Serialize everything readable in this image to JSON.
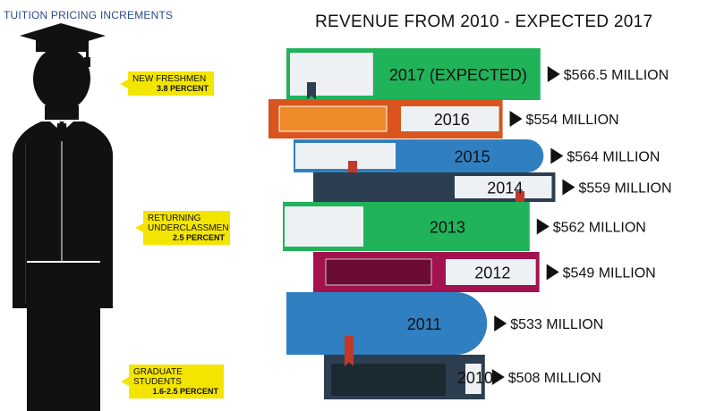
{
  "left_title": "TUITION PRICING INCREMENTS",
  "callouts": [
    {
      "label": "NEW FRESHMEN",
      "value": "3.8 PERCENT"
    },
    {
      "label": "RETURNING UNDERCLASSMEN",
      "value": "2.5 PERCENT"
    },
    {
      "label": "GRADUATE STUDENTS",
      "value": "1.6-2.5 PERCENT"
    }
  ],
  "chart_data": {
    "type": "bar",
    "title": "REVENUE FROM 2010 - EXPECTED 2017",
    "categories": [
      "2017 (EXPECTED)",
      "2016",
      "2015",
      "2014",
      "2013",
      "2012",
      "2011",
      "2010"
    ],
    "values": [
      566.5,
      554,
      564,
      559,
      562,
      549,
      533,
      508
    ],
    "value_labels": [
      "$566.5 MILLION",
      "$554 MILLION",
      "$564 MILLION",
      "$559 MILLION",
      "$562 MILLION",
      "$549 MILLION",
      "$533 MILLION",
      "$508 MILLION"
    ],
    "units": "MILLION",
    "colors": {
      "green": "#20b35a",
      "orange": "#d9541e",
      "orange_inner": "#ef8a2a",
      "blue": "#2f7fc1",
      "navy": "#2c3e50",
      "maroon": "#a3124f",
      "maroon_inner": "#6b0c35",
      "ribbon": "#c0392b",
      "label_bg": "#eef1f3"
    }
  }
}
